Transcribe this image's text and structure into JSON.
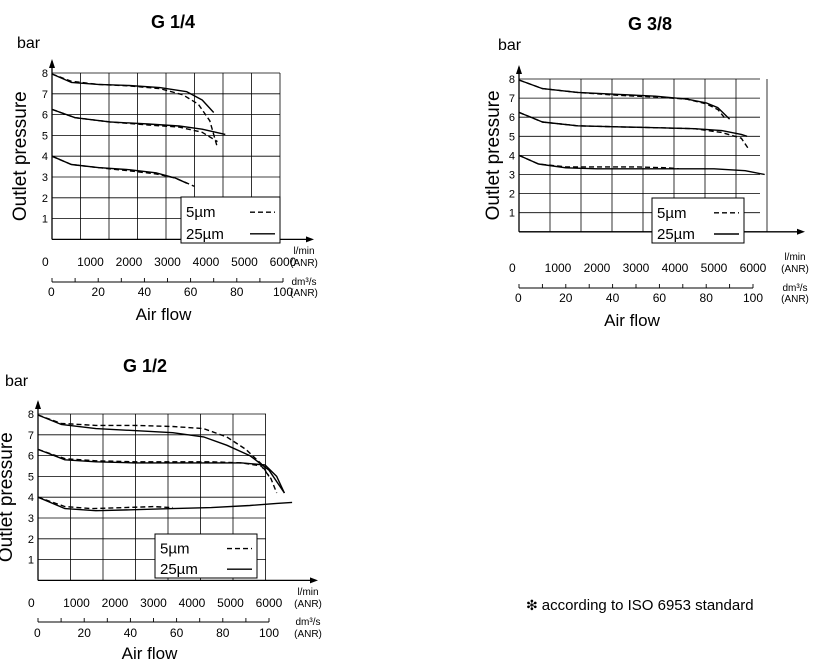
{
  "footnote": {
    "symbol": "❇",
    "text": "according to ISO 6953 standard"
  },
  "common": {
    "y_unit": "bar",
    "y_label": "Outlet pressure",
    "x_label": "Air flow",
    "lmin_unit_1": "l/min",
    "lmin_unit_2": "(ANR)",
    "dm_unit_1": "dm³/s",
    "dm_unit_2": "(ANR)",
    "legend_5": "5µm",
    "legend_25": "25µm"
  },
  "chart_data": [
    {
      "type": "line",
      "title": "G 1/4",
      "ylabel": "Outlet pressure",
      "xlabel": "Air flow",
      "ylim": [
        0,
        8
      ],
      "yticks": [
        "1",
        "2",
        "3",
        "4",
        "5",
        "6",
        "7",
        "8"
      ],
      "x_ticks_lmin": [
        "0",
        "1000",
        "2000",
        "3000",
        "4000",
        "5000",
        "6000"
      ],
      "x_ticks_dm3s": [
        "0",
        "20",
        "40",
        "60",
        "80",
        "100"
      ],
      "grid": true,
      "legend": "bottom-right",
      "series": [
        {
          "name": "5µm",
          "style": "dashed",
          "x": [
            0,
            500,
            1200,
            2000,
            2800,
            3400,
            3800,
            4100,
            4300
          ],
          "y": [
            7.95,
            7.6,
            7.45,
            7.38,
            7.25,
            6.95,
            6.5,
            5.7,
            4.4
          ]
        },
        {
          "name": "5µm",
          "style": "dashed",
          "x": [
            0,
            600,
            1500,
            2500,
            3300,
            3900,
            4300
          ],
          "y": [
            6.25,
            5.85,
            5.65,
            5.5,
            5.4,
            5.15,
            4.7
          ]
        },
        {
          "name": "5µm",
          "style": "dashed",
          "x": [
            0,
            500,
            1200,
            2000,
            2700,
            3200,
            3700
          ],
          "y": [
            4.0,
            3.6,
            3.45,
            3.3,
            3.15,
            2.95,
            2.55
          ]
        },
        {
          "name": "25µm",
          "style": "solid",
          "x": [
            0,
            500,
            1200,
            2000,
            2800,
            3500,
            3900,
            4200
          ],
          "y": [
            7.95,
            7.55,
            7.45,
            7.4,
            7.3,
            7.1,
            6.7,
            6.1
          ]
        },
        {
          "name": "25µm",
          "style": "solid",
          "x": [
            0,
            600,
            1500,
            2500,
            3300,
            3900,
            4500
          ],
          "y": [
            6.25,
            5.85,
            5.65,
            5.55,
            5.45,
            5.3,
            5.05
          ]
        },
        {
          "name": "25µm",
          "style": "solid",
          "x": [
            0,
            500,
            1200,
            2000,
            2700,
            3200,
            3500
          ],
          "y": [
            4.0,
            3.6,
            3.45,
            3.35,
            3.2,
            2.95,
            2.7
          ]
        }
      ]
    },
    {
      "type": "line",
      "title": "G 3/8",
      "ylabel": "Outlet pressure",
      "xlabel": "Air flow",
      "ylim": [
        0,
        8
      ],
      "yticks": [
        "1",
        "2",
        "3",
        "4",
        "5",
        "6",
        "7",
        "8"
      ],
      "x_ticks_lmin": [
        "0",
        "1000",
        "2000",
        "3000",
        "4000",
        "5000",
        "6000"
      ],
      "x_ticks_dm3s": [
        "0",
        "20",
        "40",
        "60",
        "80",
        "100"
      ],
      "grid": true,
      "legend": "bottom-right",
      "series": [
        {
          "name": "5µm",
          "style": "dashed",
          "x": [
            0,
            600,
            1500,
            2500,
            3500,
            4300,
            4800,
            5100,
            5300
          ],
          "y": [
            7.95,
            7.5,
            7.3,
            7.15,
            7.05,
            6.95,
            6.7,
            6.4,
            5.9
          ]
        },
        {
          "name": "5µm",
          "style": "dashed",
          "x": [
            0,
            600,
            1500,
            2500,
            3500,
            4500,
            5200,
            5700,
            5900
          ],
          "y": [
            6.25,
            5.75,
            5.55,
            5.5,
            5.45,
            5.4,
            5.2,
            4.9,
            4.3
          ]
        },
        {
          "name": "5µm",
          "style": "dashed",
          "x": [
            0,
            500,
            1200,
            2000,
            3000,
            3800,
            4100
          ],
          "y": [
            4.0,
            3.55,
            3.4,
            3.4,
            3.4,
            3.35,
            3.3
          ]
        },
        {
          "name": "25µm",
          "style": "solid",
          "x": [
            0,
            600,
            1500,
            2500,
            3500,
            4300,
            4800,
            5100,
            5400
          ],
          "y": [
            7.95,
            7.5,
            7.3,
            7.2,
            7.1,
            6.95,
            6.75,
            6.5,
            5.9
          ]
        },
        {
          "name": "25µm",
          "style": "solid",
          "x": [
            0,
            600,
            1500,
            2500,
            3500,
            4500,
            5200,
            5700,
            5850
          ],
          "y": [
            6.25,
            5.75,
            5.55,
            5.5,
            5.45,
            5.4,
            5.3,
            5.1,
            5.0
          ]
        },
        {
          "name": "25µm",
          "style": "solid",
          "x": [
            0,
            500,
            1200,
            2000,
            3000,
            4000,
            5000,
            5800,
            6300
          ],
          "y": [
            4.0,
            3.55,
            3.35,
            3.3,
            3.3,
            3.3,
            3.3,
            3.2,
            3.0
          ]
        }
      ]
    },
    {
      "type": "line",
      "title": "G 1/2",
      "ylabel": "Outlet pressure",
      "xlabel": "Air flow",
      "ylim": [
        0,
        8
      ],
      "yticks": [
        "1",
        "2",
        "3",
        "4",
        "5",
        "6",
        "7",
        "8"
      ],
      "x_ticks_lmin": [
        "0",
        "1000",
        "2000",
        "3000",
        "4000",
        "5000",
        "6000"
      ],
      "x_ticks_dm3s": [
        "0",
        "20",
        "40",
        "60",
        "80",
        "100"
      ],
      "grid": true,
      "legend": "bottom-right",
      "series": [
        {
          "name": "5µm",
          "style": "dashed",
          "x": [
            0,
            600,
            1500,
            2500,
            3500,
            4300,
            4900,
            5400,
            5800,
            6000
          ],
          "y": [
            7.95,
            7.55,
            7.45,
            7.45,
            7.4,
            7.3,
            6.9,
            6.3,
            5.6,
            5.0
          ]
        },
        {
          "name": "5µm",
          "style": "dashed",
          "x": [
            0,
            700,
            1500,
            2500,
            3500,
            4500,
            5300,
            5800,
            6050,
            6200
          ],
          "y": [
            6.3,
            5.85,
            5.75,
            5.7,
            5.7,
            5.7,
            5.65,
            5.5,
            4.9,
            4.2
          ]
        },
        {
          "name": "5µm",
          "style": "dashed",
          "x": [
            0,
            700,
            1400,
            2200,
            3000,
            3500
          ],
          "y": [
            4.0,
            3.55,
            3.45,
            3.5,
            3.55,
            3.5
          ]
        },
        {
          "name": "25µm",
          "style": "solid",
          "x": [
            0,
            600,
            1500,
            2500,
            3500,
            4300,
            4900,
            5500,
            6000,
            6400
          ],
          "y": [
            7.95,
            7.5,
            7.3,
            7.2,
            7.1,
            6.9,
            6.5,
            6.0,
            5.3,
            4.2
          ]
        },
        {
          "name": "25µm",
          "style": "solid",
          "x": [
            0,
            700,
            1500,
            2500,
            3500,
            4500,
            5300,
            5900,
            6200,
            6400
          ],
          "y": [
            6.3,
            5.8,
            5.7,
            5.65,
            5.65,
            5.65,
            5.65,
            5.55,
            5.0,
            4.2
          ]
        },
        {
          "name": "25µm",
          "style": "solid",
          "x": [
            0,
            700,
            1500,
            2500,
            3500,
            4500,
            5500,
            6200,
            6600
          ],
          "y": [
            4.0,
            3.45,
            3.35,
            3.4,
            3.45,
            3.5,
            3.6,
            3.7,
            3.75
          ]
        }
      ]
    }
  ]
}
